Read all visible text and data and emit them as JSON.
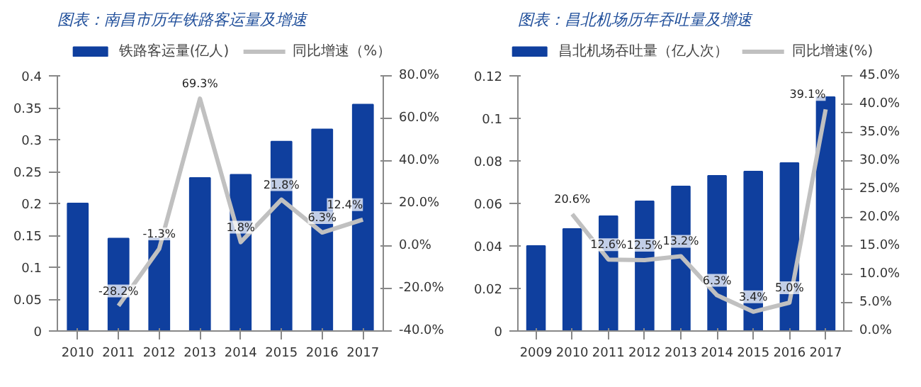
{
  "chart_data": [
    {
      "type": "bar",
      "title": "图表：南昌市历年铁路客运量及增速",
      "categories": [
        "2010",
        "2011",
        "2012",
        "2013",
        "2014",
        "2015",
        "2016",
        "2017"
      ],
      "series": [
        {
          "name": "铁路客运量(亿人)",
          "type": "bar",
          "color": "#0f3f9e",
          "values": [
            0.2,
            0.145,
            0.145,
            0.24,
            0.245,
            0.297,
            0.316,
            0.355
          ]
        },
        {
          "name": "同比增速（%）",
          "type": "line",
          "axis": "y2",
          "color": "#c0c0c0",
          "values": [
            null,
            -28.2,
            -1.3,
            69.3,
            1.8,
            21.8,
            6.3,
            12.4
          ],
          "value_labels": [
            null,
            "-28.2%",
            "-1.3%",
            "69.3%",
            "1.8%",
            "21.8%",
            "6.3%",
            "12.4%"
          ]
        }
      ],
      "ylim": [
        0,
        0.4
      ],
      "yticks": [
        0,
        0.05,
        0.1,
        0.15,
        0.2,
        0.25,
        0.3,
        0.35,
        0.4
      ],
      "y2lim": [
        -40,
        80
      ],
      "y2ticks": [
        {
          "value": -40,
          "label": "-40.0%"
        },
        {
          "value": -20,
          "label": "-20.0%"
        },
        {
          "value": 0,
          "label": "0.0%"
        },
        {
          "value": 20,
          "label": "20.0%"
        },
        {
          "value": 40,
          "label": "40.0%"
        },
        {
          "value": 60,
          "label": "60.0%"
        },
        {
          "value": 80,
          "label": "80.0%"
        }
      ],
      "grid": false,
      "legend": "top",
      "marker": "none",
      "line_style": "solid"
    },
    {
      "type": "bar",
      "title": "图表：昌北机场历年吞吐量及增速",
      "categories": [
        "2009",
        "2010",
        "2011",
        "2012",
        "2013",
        "2014",
        "2015",
        "2016",
        "2017"
      ],
      "series": [
        {
          "name": "昌北机场吞吐量（亿人次）",
          "type": "bar",
          "color": "#0f3f9e",
          "values": [
            0.04,
            0.048,
            0.054,
            0.061,
            0.068,
            0.073,
            0.075,
            0.079,
            0.11
          ]
        },
        {
          "name": "同比增速(%)",
          "type": "line",
          "axis": "y2",
          "color": "#c0c0c0",
          "values": [
            null,
            20.6,
            12.6,
            12.5,
            13.2,
            6.3,
            3.4,
            5.0,
            39.1
          ],
          "value_labels": [
            null,
            "20.6%",
            "12.6%",
            "12.5%",
            "13.2%",
            "6.3%",
            "3.4%",
            "5.0%",
            "39.1%"
          ]
        }
      ],
      "ylim": [
        0,
        0.12
      ],
      "yticks": [
        0,
        0.02,
        0.04,
        0.06,
        0.08,
        0.1,
        0.12
      ],
      "y2lim": [
        0,
        45
      ],
      "y2ticks": [
        {
          "value": 0,
          "label": "0.0%"
        },
        {
          "value": 5,
          "label": "5.0%"
        },
        {
          "value": 10,
          "label": "10.0%"
        },
        {
          "value": 15,
          "label": "15.0%"
        },
        {
          "value": 20,
          "label": "20.0%"
        },
        {
          "value": 25,
          "label": "25.0%"
        },
        {
          "value": 30,
          "label": "30.0%"
        },
        {
          "value": 35,
          "label": "35.0%"
        },
        {
          "value": 40,
          "label": "40.0%"
        },
        {
          "value": 45,
          "label": "45.0%"
        }
      ],
      "grid": false,
      "legend": "top",
      "marker": "none",
      "line_style": "solid"
    }
  ]
}
